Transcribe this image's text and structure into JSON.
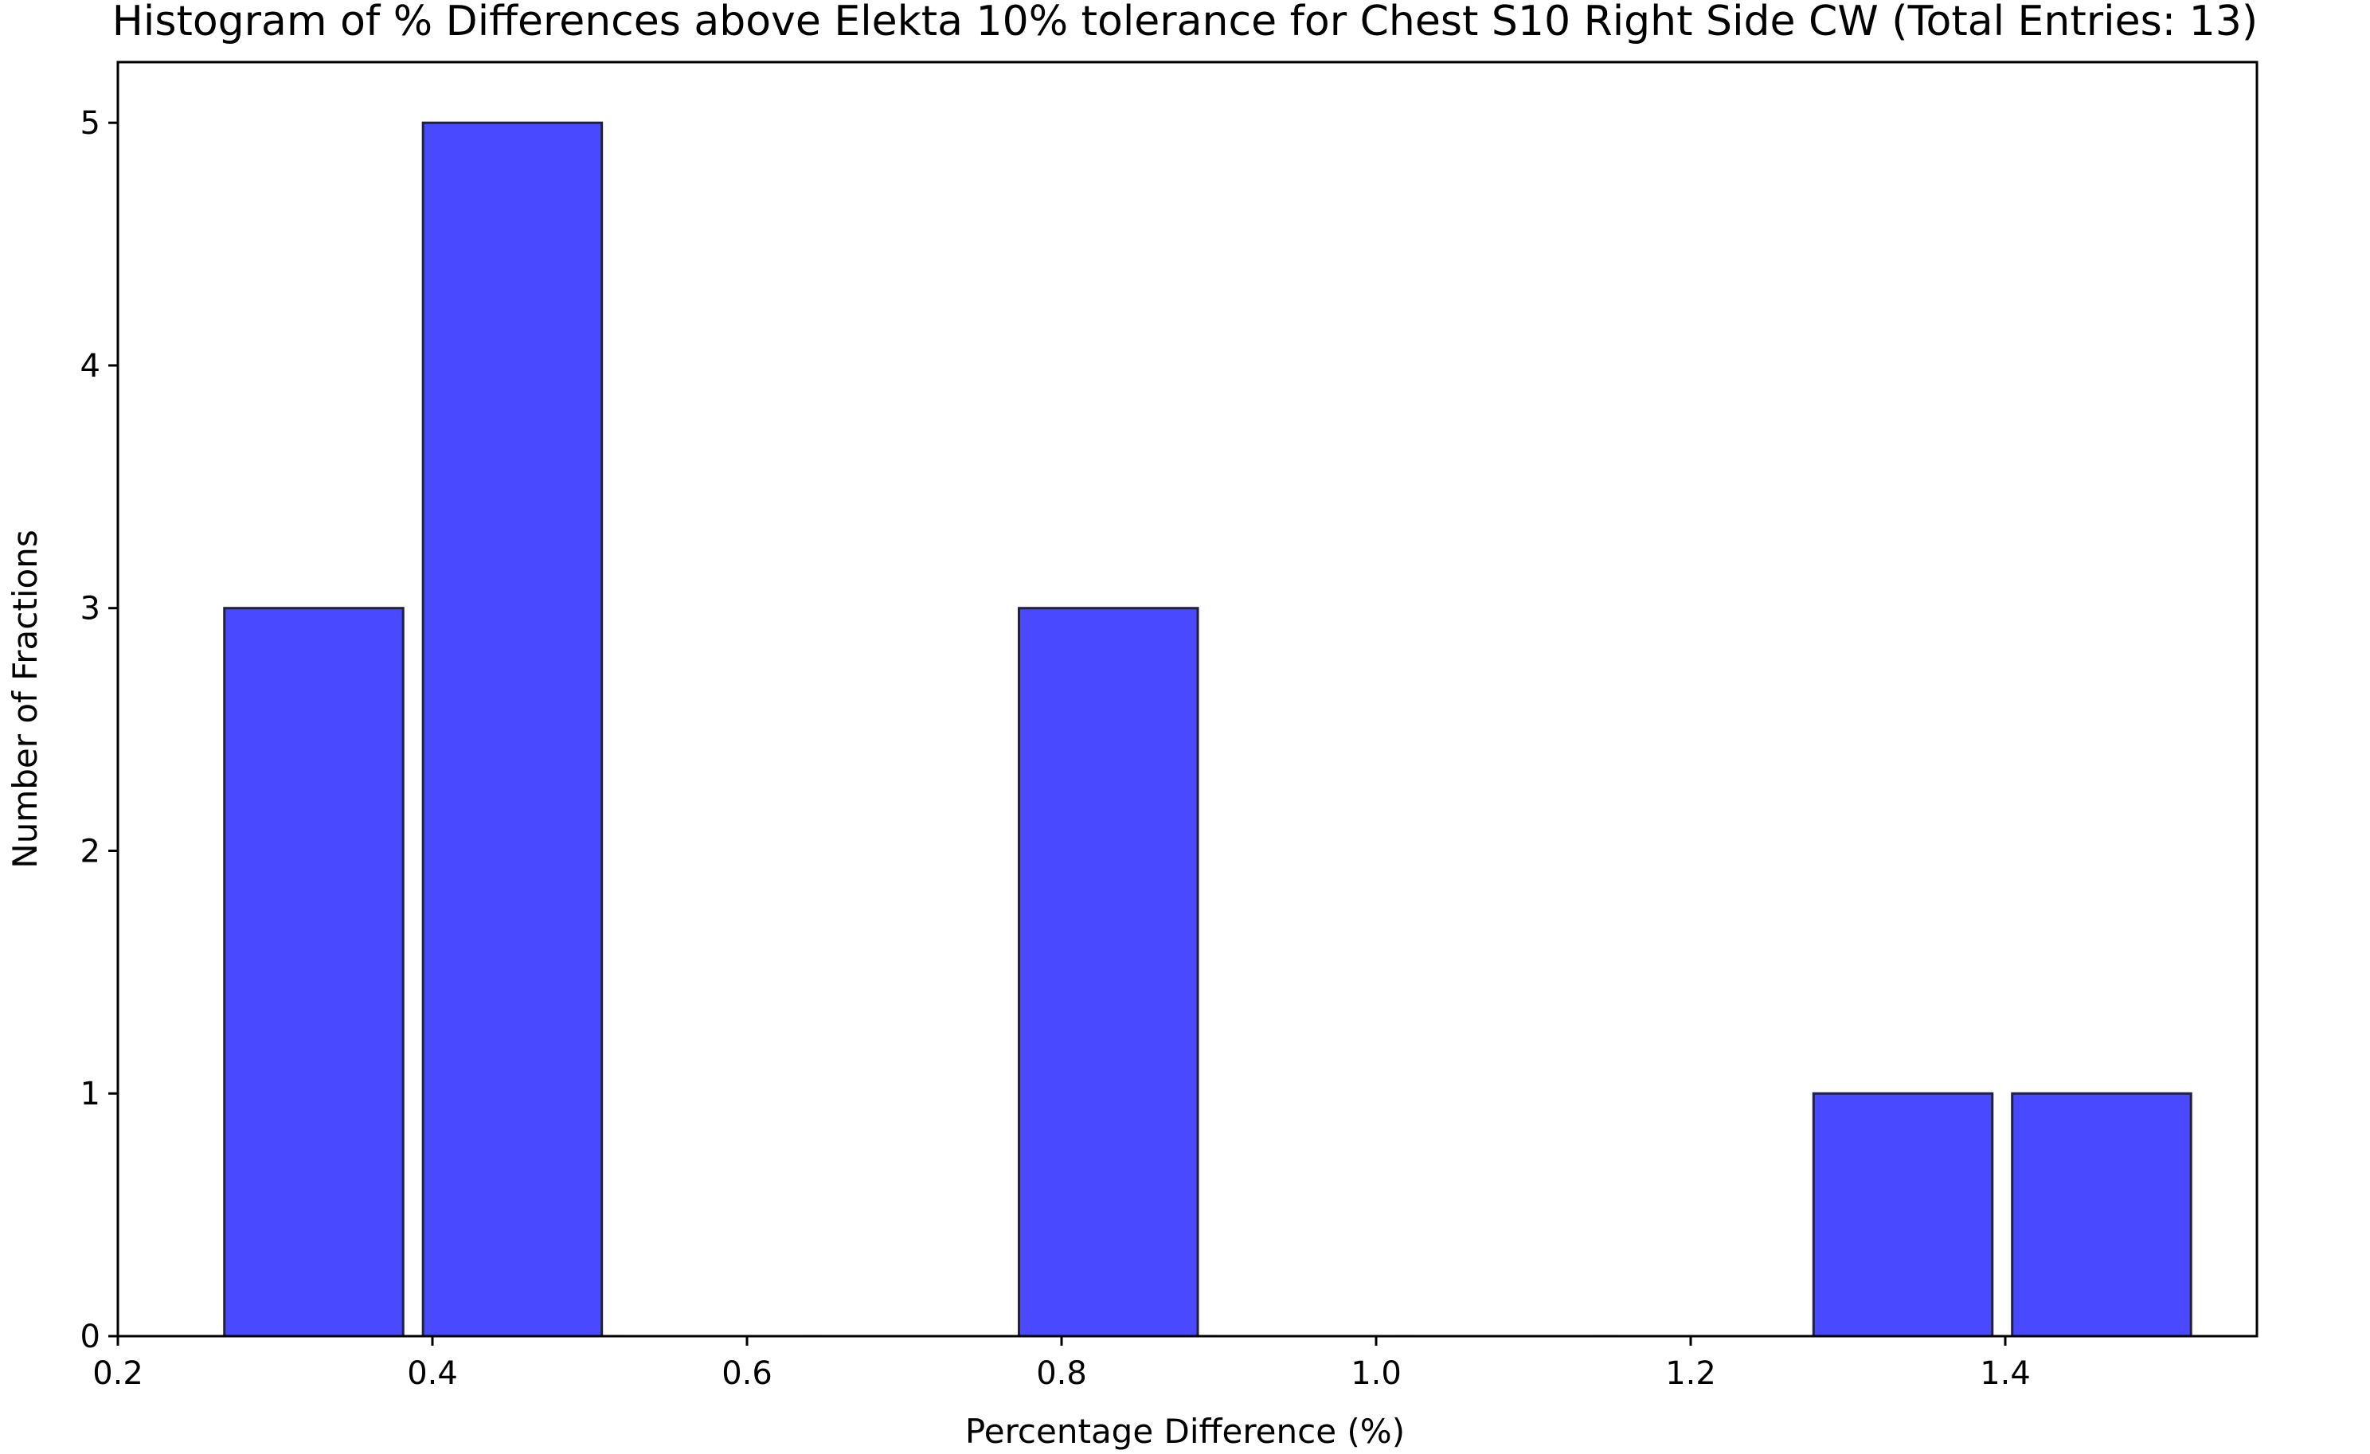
{
  "chart_data": {
    "type": "bar",
    "title": "Histogram of % Differences above Elekta 10% tolerance for Chest S10 Right Side CW (Total Entries: 13)",
    "xlabel": "Percentage Difference (%)",
    "ylabel": "Number of Fractions",
    "xlim": [
      0.2,
      1.56
    ],
    "ylim": [
      0,
      5.25
    ],
    "xticks": [
      0.2,
      0.4,
      0.6,
      0.8,
      1.0,
      1.2,
      1.4
    ],
    "xtick_labels": [
      "0.2",
      "0.4",
      "0.6",
      "0.8",
      "1.0",
      "1.2",
      "1.4"
    ],
    "yticks": [
      0,
      1,
      2,
      3,
      4,
      5
    ],
    "ytick_labels": [
      "0",
      "1",
      "2",
      "3",
      "4",
      "5"
    ],
    "bins": [
      {
        "start": 0.2614,
        "end": 0.3877,
        "count": 3
      },
      {
        "start": 0.3877,
        "end": 0.514,
        "count": 5
      },
      {
        "start": 0.514,
        "end": 0.6403,
        "count": 0
      },
      {
        "start": 0.6403,
        "end": 0.7666,
        "count": 0
      },
      {
        "start": 0.7666,
        "end": 0.8929,
        "count": 3
      },
      {
        "start": 0.8929,
        "end": 1.0192,
        "count": 0
      },
      {
        "start": 1.0192,
        "end": 1.1455,
        "count": 0
      },
      {
        "start": 1.1455,
        "end": 1.2718,
        "count": 0
      },
      {
        "start": 1.2718,
        "end": 1.3981,
        "count": 1
      },
      {
        "start": 1.3981,
        "end": 1.5244,
        "count": 1
      }
    ],
    "bar_color": "#4949ff",
    "edge_color": "#202040",
    "grid": false,
    "legend": "none"
  }
}
